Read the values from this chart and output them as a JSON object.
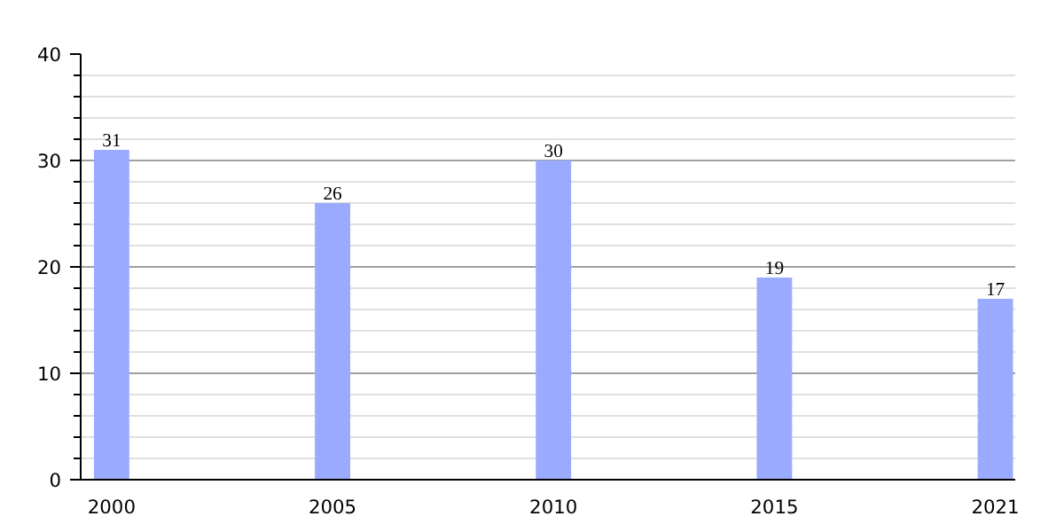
{
  "chart_data": {
    "type": "bar",
    "categories": [
      "2000",
      "2005",
      "2010",
      "2015",
      "2021"
    ],
    "values": [
      31,
      26,
      30,
      19,
      17
    ],
    "color": "#99aaff",
    "ylim": [
      0,
      40
    ],
    "yticks": [
      0,
      10,
      20,
      30,
      40
    ],
    "grid": "y",
    "data_labels": true
  }
}
